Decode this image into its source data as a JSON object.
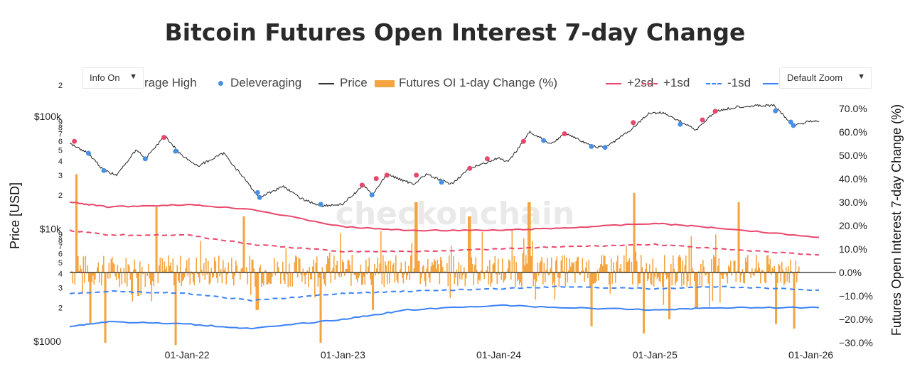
{
  "title": "Bitcoin Futures Open Interest 7-day Change",
  "controls": {
    "info_label": "Info On",
    "zoom_label": "Default Zoom"
  },
  "watermark": "checkonchain",
  "legend": [
    {
      "label": "rage High",
      "marker": "dot",
      "color": "#e8476b"
    },
    {
      "label": "Deleveraging",
      "marker": "dot",
      "color": "#4a90e2"
    },
    {
      "label": "Price",
      "marker": "line",
      "color": "#333333"
    },
    {
      "label": "Futures OI 1-day Change (%)",
      "marker": "bar",
      "color": "#f5a540"
    },
    {
      "label": "+2sd",
      "marker": "line",
      "color": "#e8476b"
    },
    {
      "label": "+1sd",
      "marker": "dash",
      "color": "#e8476b"
    },
    {
      "label": "-1sd",
      "marker": "dash",
      "color": "#3b82f6"
    },
    {
      "label": "",
      "marker": "line",
      "color": "#3b82f6"
    }
  ],
  "chart_data": {
    "type": "line",
    "title": "Bitcoin Futures Open Interest 7-day Change",
    "xlabel": "",
    "y_left_label": "Price [USD]",
    "y_left_scale": "log",
    "y_left_range": [
      1000,
      120000
    ],
    "y_left_major_ticks": [
      "$1000",
      "$10k",
      "$100k"
    ],
    "y_left_minor_ticks": [
      "2",
      "3",
      "4",
      "5",
      "6",
      "7",
      "8",
      "9"
    ],
    "y_right_label": "Futures Open Interest 7-day Change (%)",
    "y_right_range": [
      -30,
      75
    ],
    "y_right_ticks": [
      "−30.0%",
      "−20.0%",
      "−10.0%",
      "0.0%",
      "10.0%",
      "20.0%",
      "30.0%",
      "40.0%",
      "50.0%",
      "60.0%",
      "70.0%"
    ],
    "x_ticks": [
      "01-Jan-22",
      "01-Jan-23",
      "01-Jan-24",
      "01-Jan-25",
      "01-Jan-26"
    ],
    "price": [
      {
        "x": "2021-04-01",
        "y": 58000
      },
      {
        "x": "2021-05-15",
        "y": 47000
      },
      {
        "x": "2021-06-20",
        "y": 33000
      },
      {
        "x": "2021-07-20",
        "y": 30000
      },
      {
        "x": "2021-09-05",
        "y": 51000
      },
      {
        "x": "2021-09-25",
        "y": 42000
      },
      {
        "x": "2021-11-10",
        "y": 67000
      },
      {
        "x": "2021-12-15",
        "y": 47000
      },
      {
        "x": "2022-01-25",
        "y": 36000
      },
      {
        "x": "2022-03-28",
        "y": 47000
      },
      {
        "x": "2022-05-12",
        "y": 29000
      },
      {
        "x": "2022-06-18",
        "y": 19000
      },
      {
        "x": "2022-08-15",
        "y": 24000
      },
      {
        "x": "2022-09-20",
        "y": 19000
      },
      {
        "x": "2022-11-09",
        "y": 16000
      },
      {
        "x": "2022-12-31",
        "y": 16500
      },
      {
        "x": "2023-02-20",
        "y": 24500
      },
      {
        "x": "2023-03-10",
        "y": 20000
      },
      {
        "x": "2023-04-14",
        "y": 30500
      },
      {
        "x": "2023-06-15",
        "y": 25000
      },
      {
        "x": "2023-07-15",
        "y": 30500
      },
      {
        "x": "2023-09-11",
        "y": 25000
      },
      {
        "x": "2023-10-25",
        "y": 34500
      },
      {
        "x": "2023-12-31",
        "y": 42500
      },
      {
        "x": "2024-01-23",
        "y": 39000
      },
      {
        "x": "2024-03-14",
        "y": 73000
      },
      {
        "x": "2024-05-01",
        "y": 57000
      },
      {
        "x": "2024-06-07",
        "y": 71000
      },
      {
        "x": "2024-08-05",
        "y": 54000
      },
      {
        "x": "2024-09-06",
        "y": 53000
      },
      {
        "x": "2024-10-29",
        "y": 72000
      },
      {
        "x": "2024-12-17",
        "y": 106000
      },
      {
        "x": "2025-01-20",
        "y": 108000
      },
      {
        "x": "2025-04-08",
        "y": 76000
      },
      {
        "x": "2025-05-22",
        "y": 111000
      },
      {
        "x": "2025-07-14",
        "y": 122000
      },
      {
        "x": "2025-08-14",
        "y": 124000
      },
      {
        "x": "2025-10-06",
        "y": 125000
      },
      {
        "x": "2025-11-21",
        "y": 83000
      },
      {
        "x": "2026-01-05",
        "y": 92000
      },
      {
        "x": "2026-01-20",
        "y": 89000
      }
    ],
    "series": [
      {
        "name": "+2sd",
        "values": [
          {
            "x": "2021-04-01",
            "y": 30
          },
          {
            "x": "2021-07-01",
            "y": 28
          },
          {
            "x": "2022-01-01",
            "y": 29
          },
          {
            "x": "2022-06-01",
            "y": 27
          },
          {
            "x": "2023-01-01",
            "y": 19.5
          },
          {
            "x": "2023-06-01",
            "y": 18
          },
          {
            "x": "2024-01-01",
            "y": 18
          },
          {
            "x": "2024-06-01",
            "y": 19
          },
          {
            "x": "2025-01-01",
            "y": 21
          },
          {
            "x": "2025-06-01",
            "y": 19
          },
          {
            "x": "2026-01-20",
            "y": 15
          }
        ]
      },
      {
        "name": "+1sd",
        "values": [
          {
            "x": "2021-04-01",
            "y": 18
          },
          {
            "x": "2021-07-01",
            "y": 16
          },
          {
            "x": "2022-01-01",
            "y": 16
          },
          {
            "x": "2022-06-01",
            "y": 12
          },
          {
            "x": "2023-01-01",
            "y": 9
          },
          {
            "x": "2023-06-01",
            "y": 9
          },
          {
            "x": "2024-01-01",
            "y": 10
          },
          {
            "x": "2024-06-01",
            "y": 11
          },
          {
            "x": "2025-01-01",
            "y": 12
          },
          {
            "x": "2025-06-01",
            "y": 10
          },
          {
            "x": "2026-01-20",
            "y": 7.5
          }
        ]
      },
      {
        "name": "-1sd",
        "values": [
          {
            "x": "2021-04-01",
            "y": -9
          },
          {
            "x": "2021-07-01",
            "y": -8
          },
          {
            "x": "2022-01-01",
            "y": -9
          },
          {
            "x": "2022-06-01",
            "y": -12
          },
          {
            "x": "2023-01-01",
            "y": -9
          },
          {
            "x": "2023-06-01",
            "y": -8
          },
          {
            "x": "2024-01-01",
            "y": -7
          },
          {
            "x": "2024-06-01",
            "y": -6
          },
          {
            "x": "2025-01-01",
            "y": -7
          },
          {
            "x": "2025-06-01",
            "y": -6
          },
          {
            "x": "2026-01-20",
            "y": -7.5
          }
        ]
      },
      {
        "name": "",
        "values": [
          {
            "x": "2021-04-01",
            "y": -23
          },
          {
            "x": "2021-07-01",
            "y": -21
          },
          {
            "x": "2022-01-01",
            "y": -22
          },
          {
            "x": "2022-06-01",
            "y": -24
          },
          {
            "x": "2023-01-01",
            "y": -20
          },
          {
            "x": "2023-06-01",
            "y": -16
          },
          {
            "x": "2024-01-01",
            "y": -14
          },
          {
            "x": "2024-06-01",
            "y": -15
          },
          {
            "x": "2025-01-01",
            "y": -16
          },
          {
            "x": "2025-06-01",
            "y": -15
          },
          {
            "x": "2026-01-20",
            "y": -15
          }
        ]
      }
    ],
    "oi_change_bars_note_free": true,
    "oi_change_sample": [
      {
        "x": "2021-04-15",
        "y": 42
      },
      {
        "x": "2021-05-19",
        "y": -22
      },
      {
        "x": "2021-06-22",
        "y": -30
      },
      {
        "x": "2021-09-07",
        "y": -10
      },
      {
        "x": "2021-10-20",
        "y": 28
      },
      {
        "x": "2021-12-04",
        "y": -31
      },
      {
        "x": "2022-05-12",
        "y": 24
      },
      {
        "x": "2022-06-13",
        "y": -16
      },
      {
        "x": "2022-11-09",
        "y": -30
      },
      {
        "x": "2023-03-10",
        "y": -16
      },
      {
        "x": "2023-06-20",
        "y": 30
      },
      {
        "x": "2023-10-23",
        "y": 24
      },
      {
        "x": "2024-03-11",
        "y": 30
      },
      {
        "x": "2024-08-05",
        "y": -23
      },
      {
        "x": "2024-11-11",
        "y": 34
      },
      {
        "x": "2024-12-05",
        "y": -26
      },
      {
        "x": "2025-02-03",
        "y": -20
      },
      {
        "x": "2025-04-07",
        "y": -15
      },
      {
        "x": "2025-07-14",
        "y": 30
      },
      {
        "x": "2025-10-10",
        "y": -22
      },
      {
        "x": "2025-11-21",
        "y": -24
      },
      {
        "x": "2026-01-10",
        "y": 9
      }
    ],
    "deleveraging_points": [
      {
        "x": "2021-05-15",
        "y": 47000
      },
      {
        "x": "2021-06-20",
        "y": 33000
      },
      {
        "x": "2021-09-25",
        "y": 42000
      },
      {
        "x": "2021-12-05",
        "y": 49000
      },
      {
        "x": "2022-06-15",
        "y": 21000
      },
      {
        "x": "2022-06-20",
        "y": 19000
      },
      {
        "x": "2022-11-10",
        "y": 16500
      },
      {
        "x": "2023-03-10",
        "y": 20000
      },
      {
        "x": "2023-08-20",
        "y": 26000
      },
      {
        "x": "2024-04-15",
        "y": 61000
      },
      {
        "x": "2024-08-05",
        "y": 54000
      },
      {
        "x": "2024-09-06",
        "y": 53000
      },
      {
        "x": "2025-03-01",
        "y": 85000
      },
      {
        "x": "2025-10-10",
        "y": 112000
      },
      {
        "x": "2025-11-15",
        "y": 89000
      },
      {
        "x": "2025-11-21",
        "y": 83000
      }
    ],
    "leverage_high_points": [
      {
        "x": "2021-04-12",
        "y": 60000
      },
      {
        "x": "2021-11-08",
        "y": 65000
      },
      {
        "x": "2023-02-15",
        "y": 24500
      },
      {
        "x": "2023-03-20",
        "y": 28000
      },
      {
        "x": "2023-04-14",
        "y": 30000
      },
      {
        "x": "2023-06-22",
        "y": 30000
      },
      {
        "x": "2023-10-25",
        "y": 34500
      },
      {
        "x": "2023-12-05",
        "y": 42000
      },
      {
        "x": "2024-02-28",
        "y": 60000
      },
      {
        "x": "2024-06-03",
        "y": 70000
      },
      {
        "x": "2024-11-11",
        "y": 88000
      },
      {
        "x": "2025-04-22",
        "y": 93000
      },
      {
        "x": "2025-05-22",
        "y": 111000
      }
    ]
  }
}
